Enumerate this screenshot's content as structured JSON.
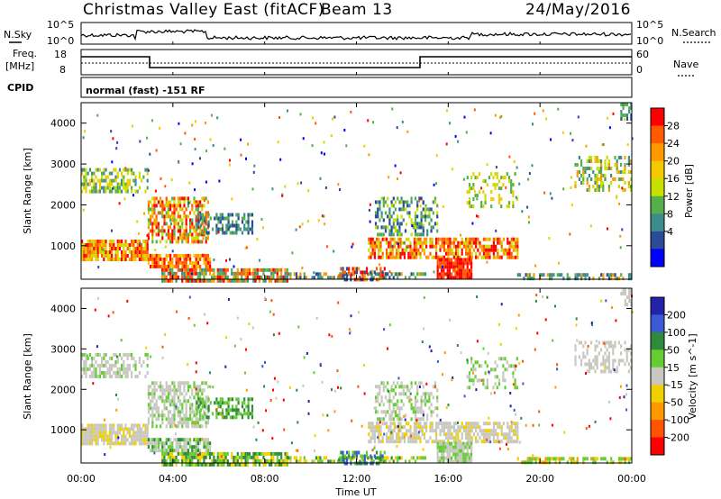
{
  "header": {
    "title": "Christmas Valley East (fitACF)",
    "beam": "Beam 13",
    "date": "24/May/2016"
  },
  "panels": {
    "nsky": {
      "left_label": "N.Sky",
      "right_label": "N.Search",
      "left_ticks": [
        "10^5",
        "10^0"
      ],
      "right_ticks": [
        "10^5",
        "10^0"
      ]
    },
    "freq": {
      "left_label_line1": "Freq.",
      "left_label_line2": "[MHz]",
      "right_label": "Nave",
      "left_ticks": [
        "18",
        "8"
      ],
      "right_ticks": [
        "60",
        "0"
      ]
    },
    "cpid": {
      "label": "CPID",
      "text": "normal (fast) -151 RF"
    }
  },
  "chart_data": [
    {
      "type": "heatmap",
      "name": "power",
      "ylabel": "Slant Range [km]",
      "colorbar_label": "Power [dB]",
      "colorbar_ticks": [
        "28",
        "24",
        "20",
        "16",
        "12",
        "8",
        "4"
      ],
      "colorbar_colors": [
        "#ff0000",
        "#ff5a00",
        "#ff9900",
        "#f5c800",
        "#c8e000",
        "#55b04a",
        "#3c8c8c",
        "#2a4a9a",
        "#0000ff"
      ],
      "y_ticks": [
        "4000",
        "3000",
        "2000",
        "1000"
      ],
      "ylim": [
        180,
        4500
      ],
      "xlim": [
        "00:00",
        "00:00"
      ]
    },
    {
      "type": "heatmap",
      "name": "velocity",
      "ylabel": "Slant Range [km]",
      "colorbar_label": "Velocity [m s^-1]",
      "colorbar_ticks": [
        "200",
        "100",
        "50",
        "15",
        "-15",
        "-50",
        "-100",
        "-200"
      ],
      "colorbar_colors": [
        "#2222aa",
        "#3b5bd6",
        "#2e8b3a",
        "#66cc33",
        "#c8c8c0",
        "#f0d000",
        "#ff9900",
        "#ff5500",
        "#ff0000"
      ],
      "y_ticks": [
        "4000",
        "3000",
        "2000",
        "1000"
      ],
      "ylim": [
        180,
        4500
      ],
      "xlim": [
        "00:00",
        "00:00"
      ]
    }
  ],
  "xaxis": {
    "label": "Time UT",
    "ticks": [
      "00:00",
      "04:00",
      "08:00",
      "12:00",
      "16:00",
      "20:00",
      "00:00"
    ]
  }
}
